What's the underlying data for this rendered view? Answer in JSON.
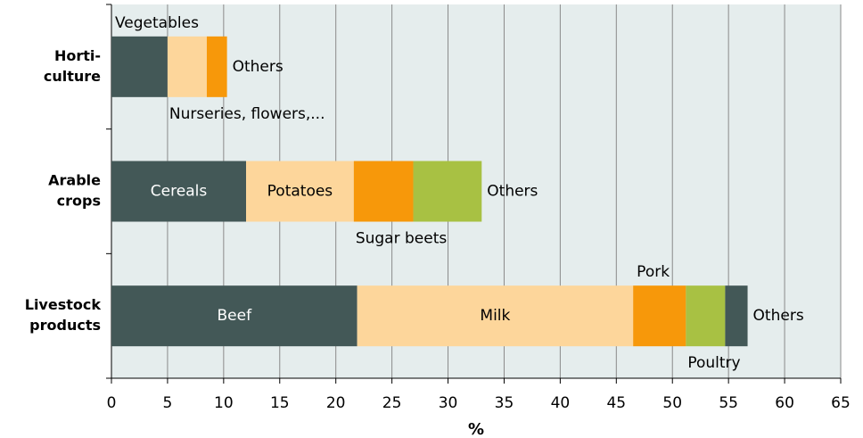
{
  "chart_data": {
    "type": "stacked-bar-horizontal",
    "x_label": "%",
    "xlim": [
      0,
      65
    ],
    "xticks": [
      0,
      5,
      10,
      15,
      20,
      25,
      30,
      35,
      40,
      45,
      50,
      55,
      60,
      65
    ],
    "grid": true,
    "background": "#e5eded",
    "bars": [
      {
        "category": [
          "Horti-",
          "culture"
        ],
        "segments": [
          {
            "label": "Vegetables",
            "value": 5.0,
            "color": "#435857"
          },
          {
            "label": "Nurseries, flowers,...",
            "value": 3.5,
            "color": "#fdd69b"
          },
          {
            "label": "Others",
            "value": 1.8,
            "color": "#f7980a"
          }
        ]
      },
      {
        "category": [
          "Arable",
          "crops"
        ],
        "segments": [
          {
            "label": "Cereals",
            "value": 12.0,
            "color": "#435857"
          },
          {
            "label": "Potatoes",
            "value": 9.6,
            "color": "#fdd69b"
          },
          {
            "label": "Sugar beets",
            "value": 5.3,
            "color": "#f7980a"
          },
          {
            "label": "Others",
            "value": 6.1,
            "color": "#a8c143"
          }
        ]
      },
      {
        "category": [
          "Livestock",
          "products"
        ],
        "segments": [
          {
            "label": "Beef",
            "value": 21.9,
            "color": "#435857"
          },
          {
            "label": "Milk",
            "value": 24.6,
            "color": "#fdd69b"
          },
          {
            "label": "Pork",
            "value": 4.7,
            "color": "#f7980a"
          },
          {
            "label": "Poultry",
            "value": 3.5,
            "color": "#a8c143"
          },
          {
            "label": "Others",
            "value": 2.0,
            "color": "#435857"
          }
        ]
      }
    ]
  }
}
